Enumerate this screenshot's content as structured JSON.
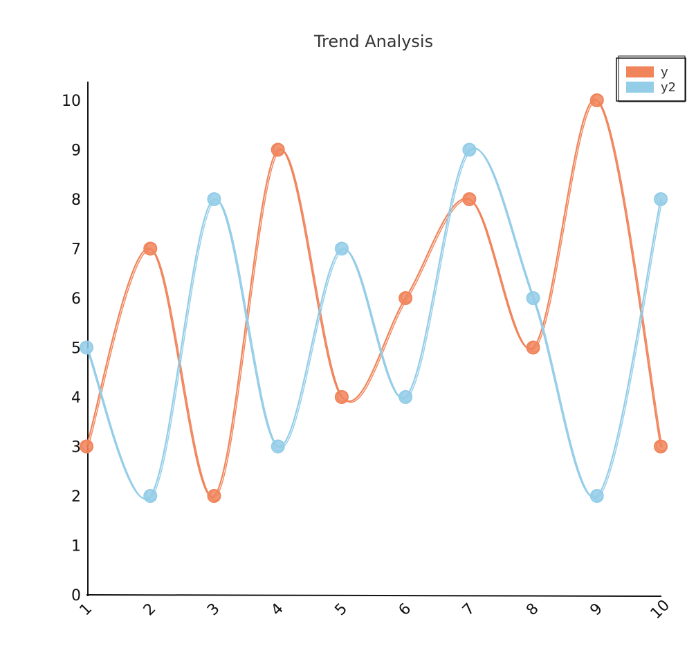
{
  "chart_data": {
    "type": "line",
    "title": "Trend Analysis",
    "xlabel": "",
    "ylabel": "",
    "x": [
      1,
      2,
      3,
      4,
      5,
      6,
      7,
      8,
      9,
      10
    ],
    "x_tick_labels": [
      "1",
      "2",
      "3",
      "4",
      "5",
      "6",
      "7",
      "8",
      "9",
      "10"
    ],
    "y_tick_labels": [
      "0",
      "1",
      "2",
      "3",
      "4",
      "5",
      "6",
      "7",
      "8",
      "9",
      "10"
    ],
    "xlim": [
      1,
      10
    ],
    "ylim": [
      0,
      10
    ],
    "grid": false,
    "legend_position": "top-right",
    "smooth": true,
    "series": [
      {
        "name": "y",
        "color": "#f0845a",
        "values": [
          3,
          7,
          2,
          9,
          4,
          6,
          8,
          5,
          10,
          3
        ]
      },
      {
        "name": "y2",
        "color": "#94cde8",
        "values": [
          5,
          2,
          8,
          3,
          7,
          4,
          9,
          6,
          2,
          8
        ]
      }
    ]
  }
}
